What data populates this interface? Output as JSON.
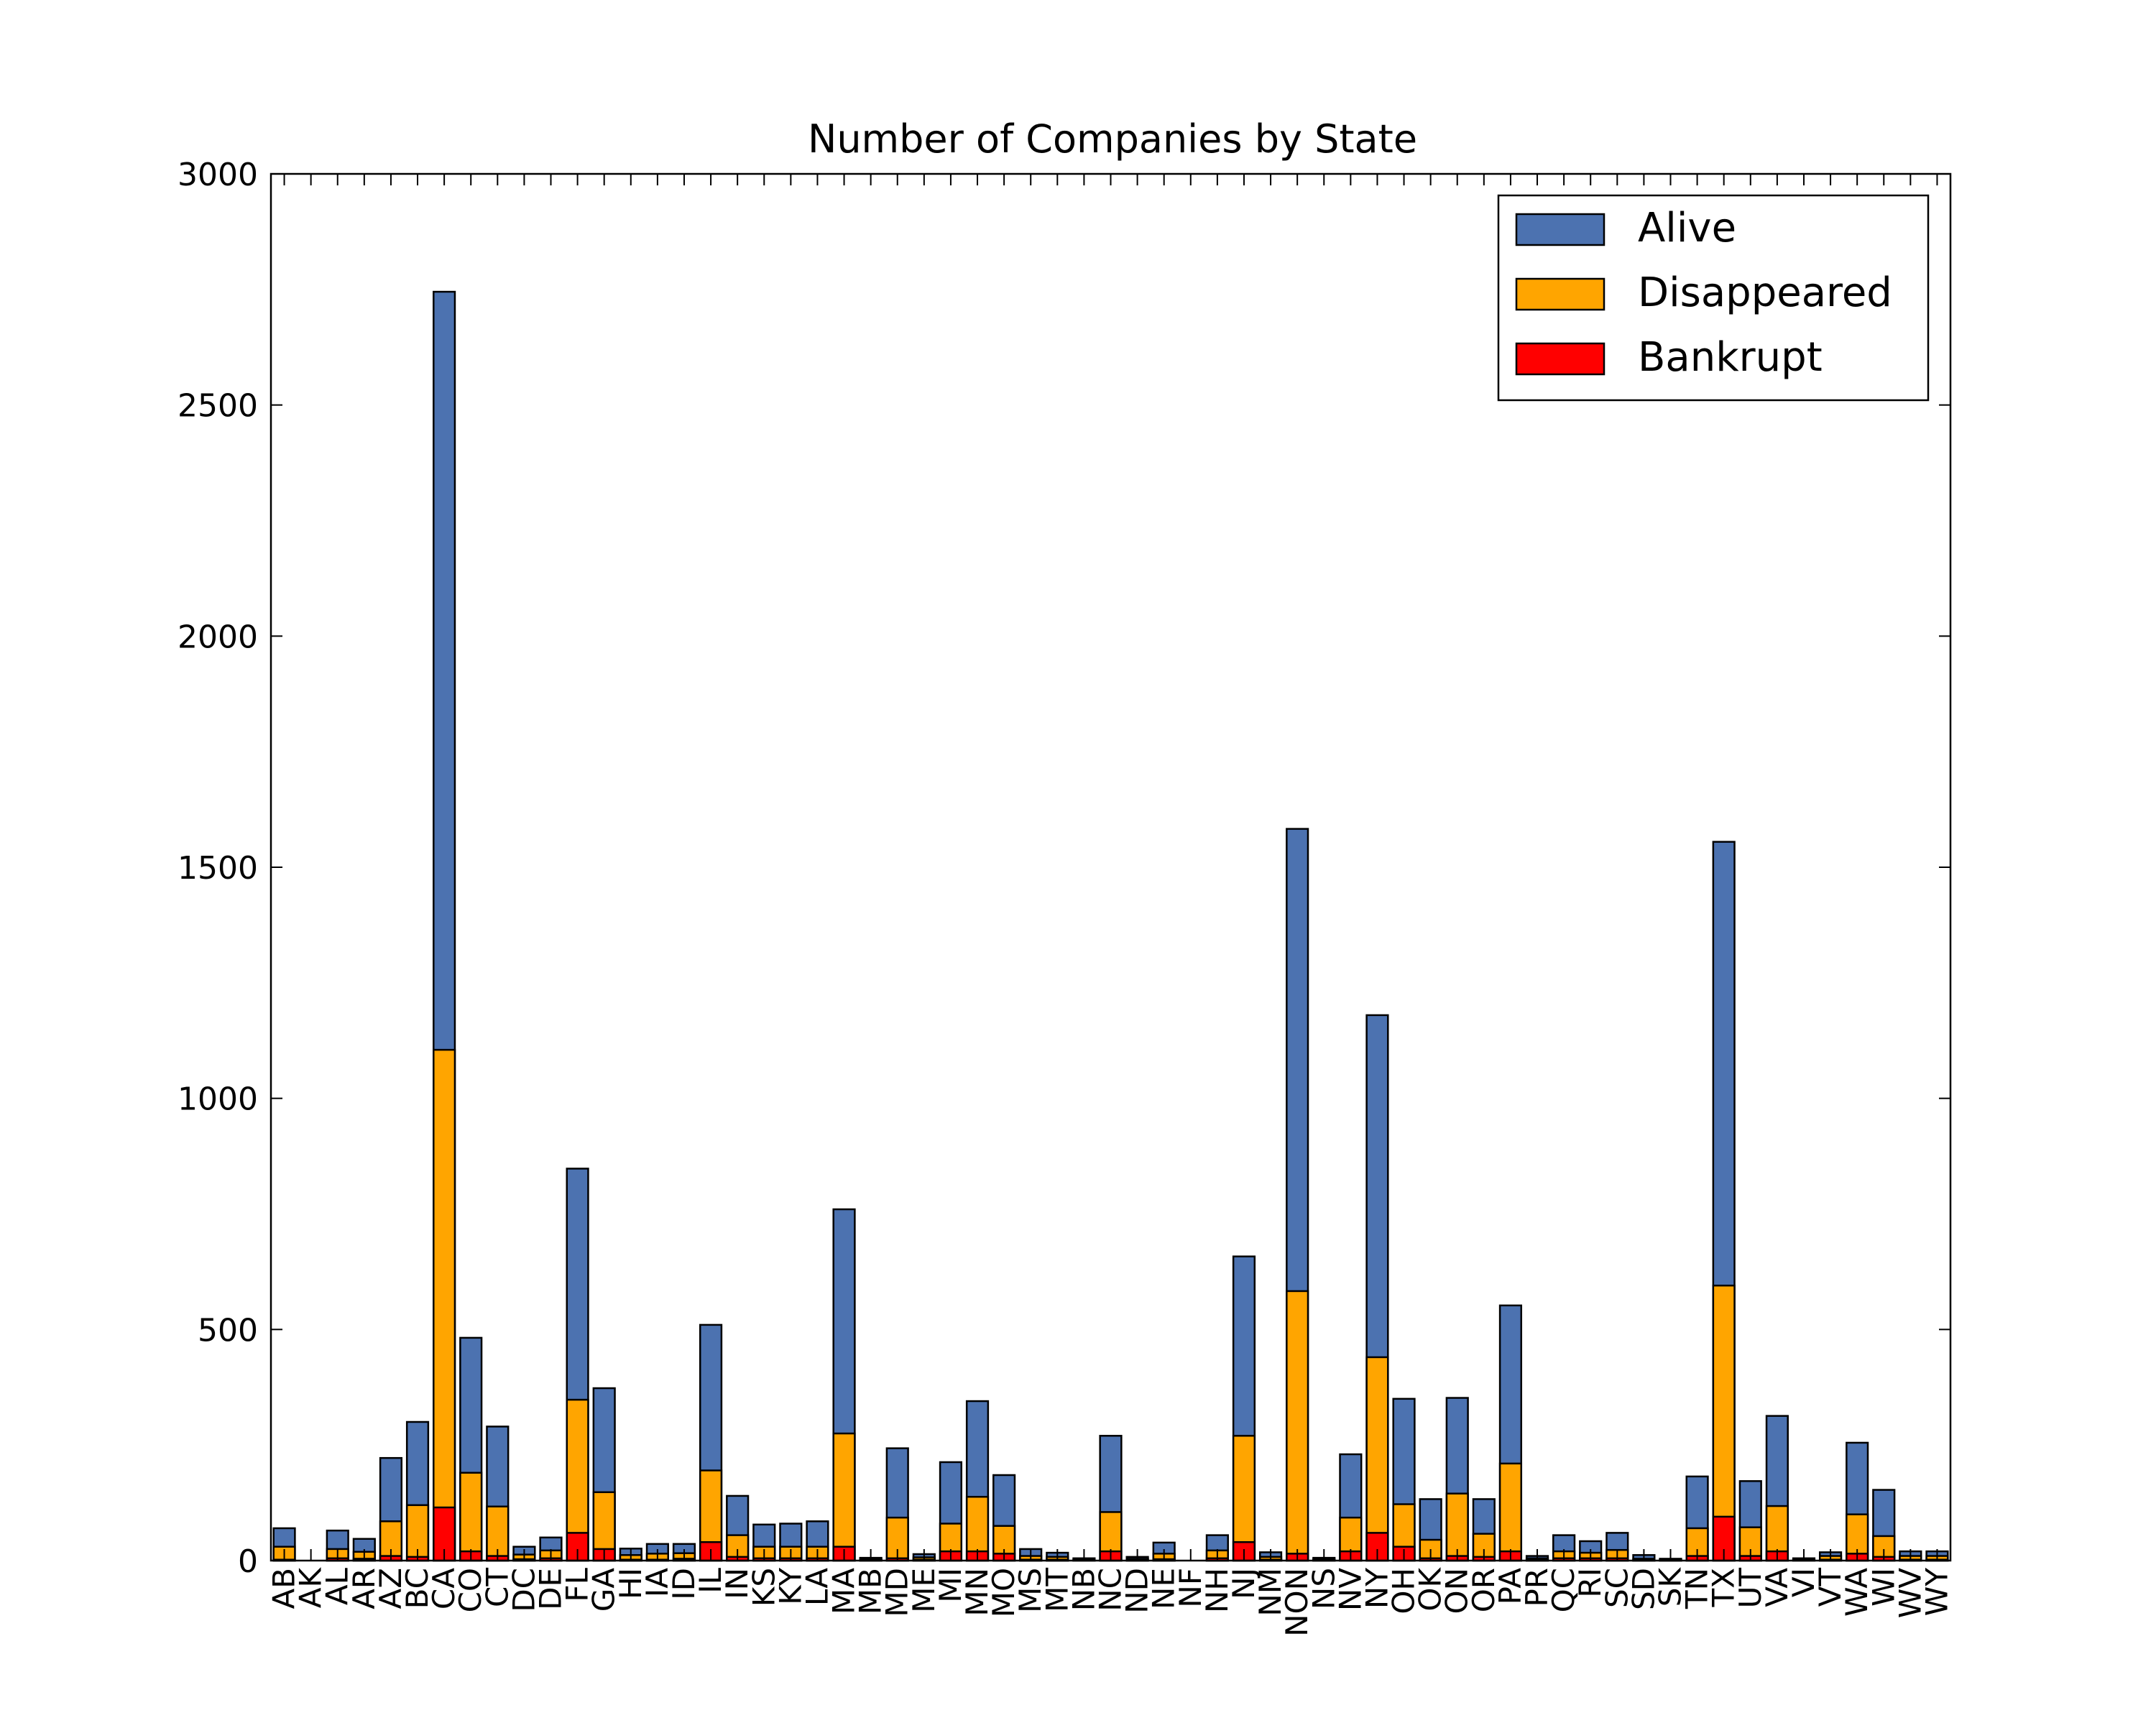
{
  "chart_data": {
    "type": "bar",
    "stacked": true,
    "title": "Number of Companies by State",
    "xlabel": "",
    "ylabel": "",
    "ylim": [
      0,
      3000
    ],
    "yticks": [
      0,
      500,
      1000,
      1500,
      2000,
      2500,
      3000
    ],
    "grid": false,
    "legend_position": "top-right",
    "categories": [
      "AB",
      "AK",
      "AL",
      "AR",
      "AZ",
      "BC",
      "CA",
      "CO",
      "CT",
      "DC",
      "DE",
      "FL",
      "GA",
      "HI",
      "IA",
      "ID",
      "IL",
      "IN",
      "KS",
      "KY",
      "LA",
      "MA",
      "MB",
      "MD",
      "ME",
      "MI",
      "MN",
      "MO",
      "MS",
      "MT",
      "NB",
      "NC",
      "ND",
      "NE",
      "NF",
      "NH",
      "NJ",
      "NM",
      "NON",
      "NS",
      "NV",
      "NY",
      "OH",
      "OK",
      "ON",
      "OR",
      "PA",
      "PR",
      "QC",
      "RI",
      "SC",
      "SD",
      "SK",
      "TN",
      "TX",
      "UT",
      "VA",
      "VI",
      "VT",
      "WA",
      "WI",
      "WV",
      "WY"
    ],
    "series": [
      {
        "name": "Bankrupt",
        "color": "#ff0000",
        "values": [
          2,
          0,
          5,
          4,
          10,
          8,
          115,
          20,
          10,
          3,
          5,
          60,
          25,
          2,
          2,
          4,
          40,
          8,
          5,
          5,
          5,
          30,
          1,
          5,
          2,
          20,
          20,
          15,
          2,
          2,
          0,
          20,
          1,
          3,
          0,
          5,
          40,
          2,
          15,
          1,
          20,
          60,
          30,
          5,
          10,
          8,
          20,
          2,
          5,
          5,
          5,
          1,
          1,
          10,
          95,
          10,
          20,
          0,
          2,
          15,
          8,
          2,
          2
        ]
      },
      {
        "name": "Disappeared",
        "color": "#ffa500",
        "values": [
          28,
          0,
          20,
          15,
          75,
          112,
          990,
          170,
          107,
          10,
          17,
          288,
          123,
          10,
          13,
          12,
          155,
          47,
          25,
          25,
          25,
          245,
          2,
          88,
          5,
          60,
          118,
          60,
          8,
          6,
          2,
          85,
          3,
          12,
          0,
          17,
          230,
          6,
          568,
          2,
          73,
          380,
          92,
          40,
          135,
          50,
          190,
          3,
          15,
          12,
          18,
          3,
          1,
          60,
          500,
          62,
          98,
          2,
          8,
          85,
          45,
          8,
          8
        ]
      },
      {
        "name": "Alive",
        "color": "#4c72b0",
        "values": [
          40,
          0,
          40,
          28,
          137,
          180,
          1640,
          292,
          173,
          17,
          28,
          500,
          225,
          14,
          21,
          20,
          315,
          85,
          48,
          50,
          55,
          485,
          3,
          150,
          7,
          133,
          207,
          110,
          15,
          9,
          3,
          165,
          4,
          24,
          0,
          33,
          388,
          10,
          1000,
          3,
          137,
          740,
          228,
          88,
          207,
          75,
          342,
          5,
          35,
          25,
          37,
          8,
          2,
          112,
          960,
          100,
          195,
          3,
          8,
          155,
          100,
          10,
          10
        ]
      }
    ]
  }
}
